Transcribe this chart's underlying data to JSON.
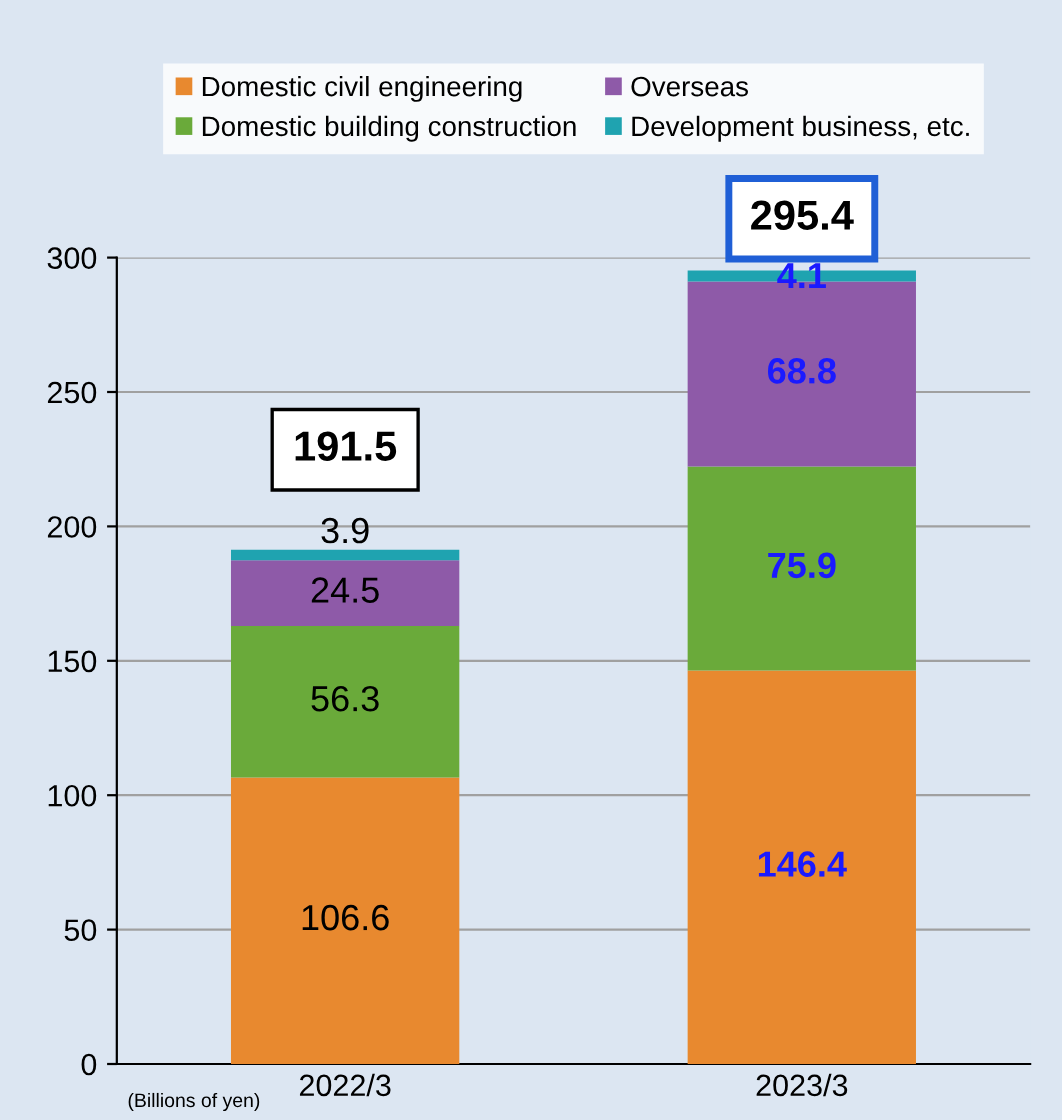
{
  "chart_data": {
    "type": "bar",
    "stacked": true,
    "categories": [
      "2022/3",
      "2023/3"
    ],
    "series": [
      {
        "name": "Domestic civil engineering",
        "color": "#e8892f",
        "values": [
          106.6,
          146.4
        ]
      },
      {
        "name": "Domestic building construction",
        "color": "#6aaa3a",
        "values": [
          56.3,
          75.9
        ]
      },
      {
        "name": "Overseas",
        "color": "#8e5aa8",
        "values": [
          24.5,
          68.8
        ]
      },
      {
        "name": "Development business, etc.",
        "color": "#1fa3b0",
        "values": [
          3.9,
          4.1
        ]
      }
    ],
    "totals": [
      "191.5",
      "295.4"
    ],
    "data_labels": true,
    "ylim": [
      0,
      300
    ],
    "yticks": [
      0,
      50,
      100,
      150,
      200,
      250,
      300
    ],
    "grid": "y",
    "legend": "top",
    "annotations": [
      "(Billions of yen)"
    ]
  }
}
